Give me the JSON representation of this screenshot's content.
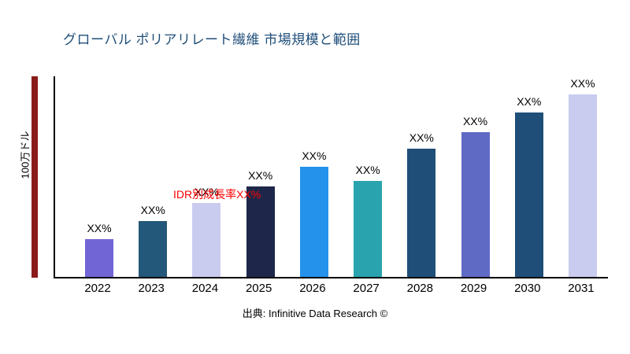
{
  "title": "グローバル ポリアリレート繊維 市場規模と範囲",
  "y_axis_label": "100万ドル",
  "annotation": "IDR別成長率XX%",
  "source": "出典: Infinitive Data Research ©",
  "colors": {
    "title": "#1F4E79",
    "annotation": "#FF0000",
    "accent_bar": "#8B1A1A",
    "axis": "#000000"
  },
  "chart_data": {
    "type": "bar",
    "title": "グローバル ポリアリレート繊維 市場規模と範囲",
    "xlabel": "",
    "ylabel": "100万ドル",
    "categories": [
      "2022",
      "2023",
      "2024",
      "2025",
      "2026",
      "2027",
      "2028",
      "2029",
      "2030",
      "2031"
    ],
    "values": [
      19,
      28,
      37,
      45,
      55,
      48,
      64,
      72,
      82,
      91
    ],
    "values_note": "relative bar heights in % of plot height; numeric values not shown in chart, bars labeled XX%",
    "bar_labels": [
      "XX%",
      "XX%",
      "XX%",
      "XX%",
      "XX%",
      "XX%",
      "XX%",
      "XX%",
      "XX%",
      "XX%"
    ],
    "bar_colors": [
      "#7165D6",
      "#24587A",
      "#C9CCEE",
      "#1E2749",
      "#2492EB",
      "#29A3AE",
      "#1F4E79",
      "#5F6AC4",
      "#1F4E79",
      "#C9CCEE"
    ],
    "ylim": [
      0,
      100
    ],
    "grid": false,
    "legend": "none",
    "annotations": [
      "IDR別成長率XX%"
    ]
  }
}
